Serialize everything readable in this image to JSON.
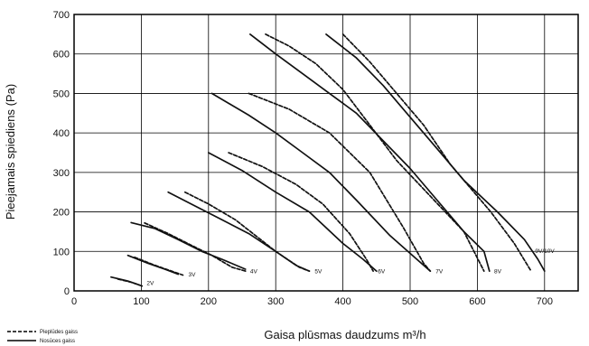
{
  "chart_data": {
    "type": "line",
    "title": "",
    "xlabel": "Gaisa plūsmas daudzums m³/h",
    "ylabel": "Pieejamais spiediens (Pa)",
    "xlim": [
      0,
      750
    ],
    "ylim": [
      0,
      700
    ],
    "x_ticks": [
      "0",
      "100",
      "200",
      "300",
      "400",
      "500",
      "600",
      "700"
    ],
    "y_ticks": [
      "0",
      "100",
      "200",
      "300",
      "400",
      "500",
      "600",
      "700"
    ],
    "grid": true,
    "legend_position": "bottom-left",
    "legend": [
      {
        "label": "Pieplūdes gaiss",
        "style": "dashed"
      },
      {
        "label": "Nosūces gaiss",
        "style": "solid"
      }
    ],
    "series": [
      {
        "speed": "2V",
        "name": "2V Pieplūdes gaiss",
        "style": "dashed",
        "points": [
          [
            65,
            30
          ],
          [
            85,
            22
          ],
          [
            102,
            12
          ]
        ]
      },
      {
        "speed": "2V",
        "name": "2V Nosūces gaiss",
        "style": "solid",
        "points": [
          [
            55,
            35
          ],
          [
            80,
            25
          ],
          [
            97,
            15
          ]
        ]
      },
      {
        "speed": "3V",
        "name": "3V Pieplūdes gaiss",
        "style": "dashed",
        "points": [
          [
            90,
            85
          ],
          [
            120,
            65
          ],
          [
            145,
            50
          ],
          [
            162,
            40
          ]
        ]
      },
      {
        "speed": "3V",
        "name": "3V Nosūces gaiss",
        "style": "solid",
        "points": [
          [
            80,
            90
          ],
          [
            110,
            70
          ],
          [
            135,
            55
          ],
          [
            155,
            42
          ]
        ]
      },
      {
        "speed": "4V",
        "name": "4V Pieplūdes gaiss",
        "style": "dashed",
        "points": [
          [
            105,
            172
          ],
          [
            140,
            145
          ],
          [
            175,
            115
          ],
          [
            205,
            90
          ],
          [
            235,
            60
          ],
          [
            255,
            50
          ]
        ]
      },
      {
        "speed": "4V",
        "name": "4V Nosūces gaiss",
        "style": "solid",
        "points": [
          [
            85,
            173
          ],
          [
            120,
            158
          ],
          [
            155,
            130
          ],
          [
            190,
            100
          ],
          [
            220,
            80
          ],
          [
            255,
            55
          ]
        ]
      },
      {
        "speed": "5V",
        "name": "5V Pieplūdes gaiss",
        "style": "dashed",
        "points": [
          [
            165,
            250
          ],
          [
            200,
            220
          ],
          [
            240,
            180
          ],
          [
            270,
            140
          ],
          [
            300,
            100
          ],
          [
            335,
            60
          ],
          [
            350,
            50
          ]
        ]
      },
      {
        "speed": "5V",
        "name": "5V Nosūces gaiss",
        "style": "solid",
        "points": [
          [
            140,
            250
          ],
          [
            180,
            215
          ],
          [
            220,
            180
          ],
          [
            260,
            145
          ],
          [
            300,
            100
          ],
          [
            330,
            65
          ],
          [
            350,
            50
          ]
        ]
      },
      {
        "speed": "6V",
        "name": "6V Pieplūdes gaiss",
        "style": "dashed",
        "points": [
          [
            230,
            350
          ],
          [
            280,
            315
          ],
          [
            330,
            270
          ],
          [
            370,
            220
          ],
          [
            410,
            145
          ],
          [
            435,
            80
          ],
          [
            445,
            50
          ]
        ]
      },
      {
        "speed": "6V",
        "name": "6V Nosūces gaiss",
        "style": "solid",
        "points": [
          [
            200,
            350
          ],
          [
            250,
            305
          ],
          [
            300,
            250
          ],
          [
            350,
            200
          ],
          [
            400,
            120
          ],
          [
            430,
            80
          ],
          [
            450,
            50
          ]
        ]
      },
      {
        "speed": "7V",
        "name": "7V Pieplūdes gaiss",
        "style": "dashed",
        "points": [
          [
            260,
            500
          ],
          [
            320,
            460
          ],
          [
            380,
            400
          ],
          [
            440,
            300
          ],
          [
            490,
            160
          ],
          [
            520,
            70
          ],
          [
            530,
            50
          ]
        ]
      },
      {
        "speed": "7V",
        "name": "7V Nosūces gaiss",
        "style": "solid",
        "points": [
          [
            205,
            500
          ],
          [
            260,
            445
          ],
          [
            300,
            400
          ],
          [
            340,
            350
          ],
          [
            380,
            300
          ],
          [
            420,
            230
          ],
          [
            470,
            140
          ],
          [
            510,
            80
          ],
          [
            530,
            50
          ]
        ]
      },
      {
        "speed": "8V",
        "name": "8V Pieplūdes gaiss",
        "style": "dashed",
        "points": [
          [
            285,
            650
          ],
          [
            320,
            620
          ],
          [
            360,
            575
          ],
          [
            400,
            510
          ],
          [
            440,
            420
          ],
          [
            480,
            330
          ],
          [
            530,
            240
          ],
          [
            580,
            150
          ],
          [
            610,
            50
          ]
        ]
      },
      {
        "speed": "8V",
        "name": "8V Nosūces gaiss",
        "style": "solid",
        "points": [
          [
            262,
            650
          ],
          [
            300,
            600
          ],
          [
            340,
            550
          ],
          [
            380,
            500
          ],
          [
            420,
            450
          ],
          [
            460,
            380
          ],
          [
            500,
            310
          ],
          [
            540,
            230
          ],
          [
            580,
            150
          ],
          [
            610,
            100
          ],
          [
            618,
            50
          ]
        ]
      },
      {
        "speed": "9V/10V",
        "name": "9V/10V Pieplūdes gaiss",
        "style": "dashed",
        "points": [
          [
            400,
            650
          ],
          [
            440,
            580
          ],
          [
            480,
            500
          ],
          [
            520,
            420
          ],
          [
            560,
            320
          ],
          [
            620,
            200
          ],
          [
            655,
            120
          ],
          [
            680,
            50
          ]
        ]
      },
      {
        "speed": "9V/10V",
        "name": "9V/10V Nosūces gaiss",
        "style": "solid",
        "points": [
          [
            375,
            650
          ],
          [
            420,
            590
          ],
          [
            460,
            520
          ],
          [
            500,
            440
          ],
          [
            540,
            360
          ],
          [
            580,
            280
          ],
          [
            630,
            200
          ],
          [
            670,
            130
          ],
          [
            690,
            80
          ],
          [
            700,
            50
          ]
        ]
      }
    ],
    "curve_labels": [
      {
        "text": "2V",
        "x": 108,
        "y": 15
      },
      {
        "text": "3V",
        "x": 170,
        "y": 37
      },
      {
        "text": "4V",
        "x": 262,
        "y": 45
      },
      {
        "text": "5V",
        "x": 358,
        "y": 45
      },
      {
        "text": "6V",
        "x": 452,
        "y": 45
      },
      {
        "text": "7V",
        "x": 538,
        "y": 45
      },
      {
        "text": "8V",
        "x": 625,
        "y": 45
      },
      {
        "text": "9V/10V",
        "x": 686,
        "y": 96
      }
    ]
  }
}
